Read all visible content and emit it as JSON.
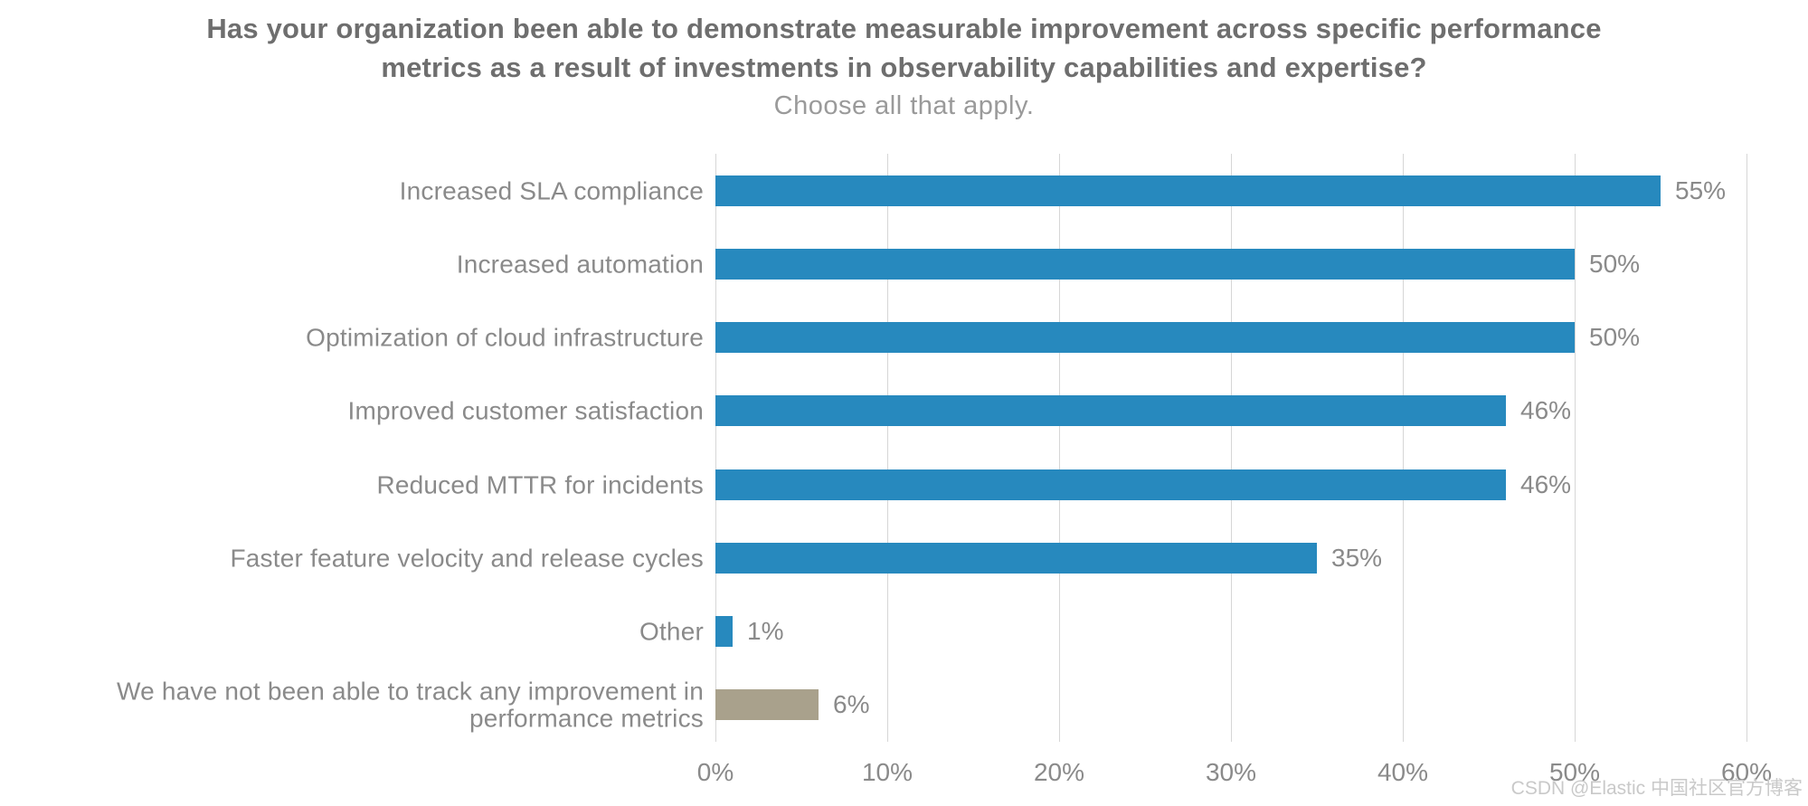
{
  "header": {
    "title": "Has your organization been able to demonstrate measurable improvement across specific performance metrics as a result of investments in observability capabilities and expertise?",
    "subtitle": "Choose all that apply."
  },
  "chart_data": {
    "type": "bar",
    "orientation": "horizontal",
    "title": "Has your organization been able to demonstrate measurable improvement across specific performance metrics as a result of investments in observability capabilities and expertise?",
    "subtitle": "Choose all that apply.",
    "categories": [
      "Increased SLA compliance",
      "Increased automation",
      "Optimization of cloud infrastructure",
      "Improved customer satisfaction",
      "Reduced MTTR for incidents",
      "Faster feature velocity and release cycles",
      "Other",
      "We have not been able to track any improvement in performance metrics"
    ],
    "values": [
      55,
      50,
      50,
      46,
      46,
      35,
      1,
      6
    ],
    "value_labels": [
      "55%",
      "50%",
      "50%",
      "46%",
      "46%",
      "35%",
      "1%",
      "6%"
    ],
    "bar_colors": [
      "#2789BE",
      "#2789BE",
      "#2789BE",
      "#2789BE",
      "#2789BE",
      "#2789BE",
      "#2789BE",
      "#A9A18C"
    ],
    "xlim": [
      0,
      60
    ],
    "x_tick_values": [
      0,
      10,
      20,
      30,
      40,
      50,
      60
    ],
    "x_tick_labels": [
      "0%",
      "10%",
      "20%",
      "30%",
      "40%",
      "50%",
      "60%"
    ],
    "grid": true,
    "legend": "none",
    "accent_blue": "#2789BE",
    "accent_tan": "#A9A18C",
    "gridline_color": "#D6D6D6"
  },
  "watermark": {
    "text": "CSDN @Elastic 中国社区官方博客"
  }
}
